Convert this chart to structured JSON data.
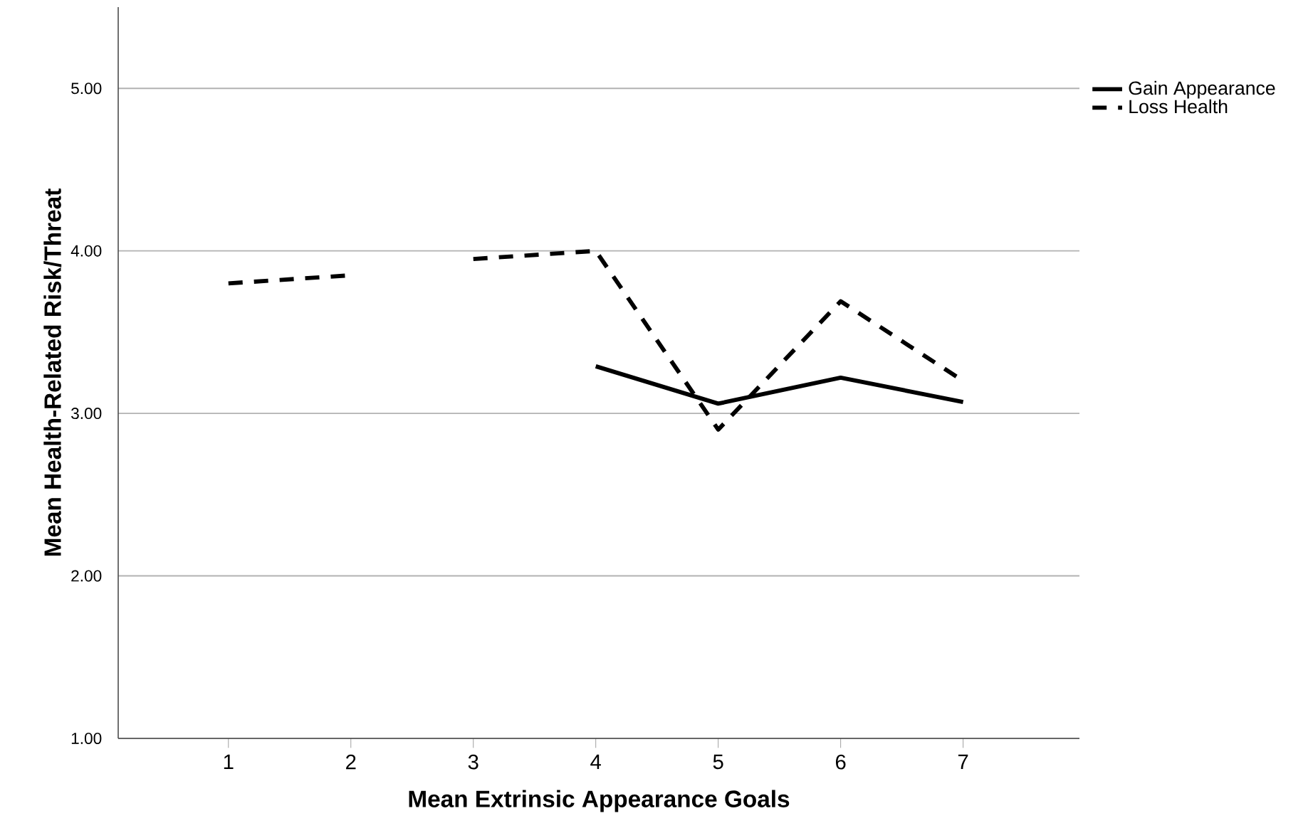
{
  "chart_data": {
    "type": "line",
    "xlabel": "Mean Extrinsic Appearance Goals",
    "ylabel": "Mean Health-Related Risk/Threat",
    "xlim": [
      0.1,
      7.95
    ],
    "xticks": [
      1,
      2,
      3,
      4,
      5,
      6,
      7
    ],
    "ylim": [
      1,
      5.5
    ],
    "yticks": [
      {
        "value": 1,
        "label": "1.00"
      },
      {
        "value": 2,
        "label": "2.00"
      },
      {
        "value": 3,
        "label": "3.00"
      },
      {
        "value": 4,
        "label": "4.00"
      },
      {
        "value": 5,
        "label": "5.00"
      }
    ],
    "grid": "y",
    "legend": "top right",
    "series": [
      {
        "name": "Gain Appearance",
        "color": "#000000",
        "line_style": "solid",
        "x": [
          4,
          5,
          6,
          7
        ],
        "values": [
          3.29,
          3.06,
          3.22,
          3.07
        ]
      },
      {
        "name": "Loss Health",
        "color": "#000000",
        "line_style": "dashed",
        "x": [
          1,
          2,
          2.5,
          3,
          4,
          5,
          6,
          7
        ],
        "values": [
          3.8,
          3.85,
          null,
          3.95,
          4.0,
          2.9,
          3.69,
          3.2
        ]
      }
    ]
  }
}
